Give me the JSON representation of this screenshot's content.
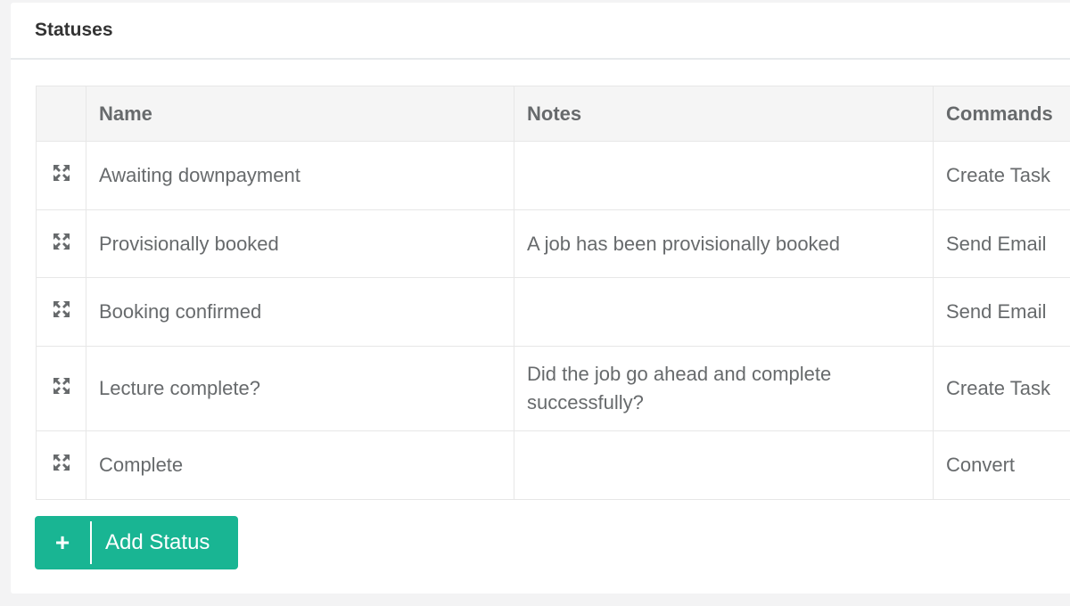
{
  "panel": {
    "title": "Statuses"
  },
  "table": {
    "columns": [
      "",
      "Name",
      "Notes",
      "Commands"
    ],
    "rows": [
      {
        "name": "Awaiting downpayment",
        "notes": "",
        "command": "Create Task"
      },
      {
        "name": "Provisionally booked",
        "notes": "A job has been provisionally booked",
        "command": "Send Email"
      },
      {
        "name": "Booking confirmed",
        "notes": "",
        "command": "Send Email"
      },
      {
        "name": "Lecture complete?",
        "notes": "Did the job go ahead and complete successfully?",
        "command": "Create Task"
      },
      {
        "name": "Complete",
        "notes": "",
        "command": "Convert"
      }
    ]
  },
  "add_button": {
    "label": "Add Status",
    "icon": "plus-icon",
    "color": "#19b593"
  },
  "row_icon": "drag-move-icon"
}
